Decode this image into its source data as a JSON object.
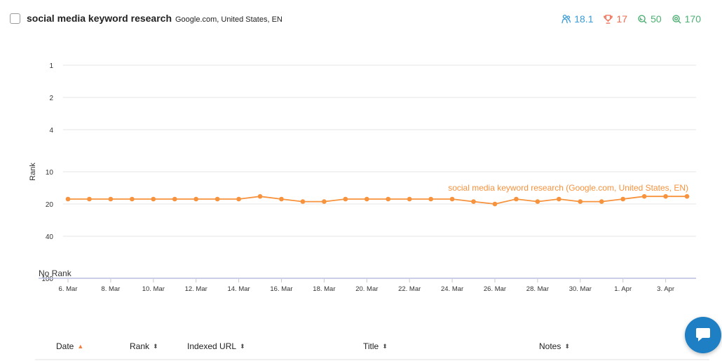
{
  "header": {
    "keyword": "social media keyword research",
    "location": "Google.com, United States, EN",
    "stats": [
      {
        "name": "average-rank",
        "icon": "people-icon",
        "value": "18.1",
        "color": "#3a9bd5"
      },
      {
        "name": "best-rank",
        "icon": "trophy-icon",
        "value": "17",
        "color": "#ef6b4f"
      },
      {
        "name": "keyword-difficulty",
        "icon": "search-icon",
        "value": "50",
        "color": "#4caf72"
      },
      {
        "name": "search-volume",
        "icon": "target-search-icon",
        "value": "170",
        "color": "#4caf72"
      }
    ]
  },
  "chart_data": {
    "type": "line",
    "ylabel": "Rank",
    "y_reversed": true,
    "y_scale": "log",
    "y_ticks": [
      "1",
      "2",
      "4",
      "10",
      "20",
      "40",
      "100"
    ],
    "no_rank_label": "No Rank",
    "x_tick_labels": [
      "6. Mar",
      "8. Mar",
      "10. Mar",
      "12. Mar",
      "14. Mar",
      "16. Mar",
      "18. Mar",
      "20. Mar",
      "22. Mar",
      "24. Mar",
      "26. Mar",
      "28. Mar",
      "30. Mar",
      "1. Apr",
      "3. Apr"
    ],
    "x": [
      "6. Mar",
      "7. Mar",
      "8. Mar",
      "9. Mar",
      "10. Mar",
      "11. Mar",
      "12. Mar",
      "13. Mar",
      "14. Mar",
      "15. Mar",
      "16. Mar",
      "17. Mar",
      "18. Mar",
      "19. Mar",
      "20. Mar",
      "21. Mar",
      "22. Mar",
      "23. Mar",
      "24. Mar",
      "25. Mar",
      "26. Mar",
      "27. Mar",
      "28. Mar",
      "29. Mar",
      "30. Mar",
      "31. Mar",
      "1. Apr",
      "2. Apr",
      "3. Apr",
      "4. Apr"
    ],
    "series": [
      {
        "name": "social media keyword research (Google.com, United States, EN)",
        "color": "#f7923d",
        "values": [
          18,
          18,
          18,
          18,
          18,
          18,
          18,
          18,
          18,
          17,
          18,
          19,
          19,
          18,
          18,
          18,
          18,
          18,
          18,
          19,
          20,
          18,
          19,
          18,
          19,
          19,
          18,
          17,
          17,
          17
        ]
      }
    ],
    "grid": true,
    "legend": "inline-label-right"
  },
  "table": {
    "columns": [
      {
        "label": "Date",
        "sort": "asc"
      },
      {
        "label": "Rank",
        "sort": "none"
      },
      {
        "label": "Indexed URL",
        "sort": "none"
      },
      {
        "label": "Title",
        "sort": "none"
      },
      {
        "label": "Notes",
        "sort": "none"
      }
    ]
  },
  "chat": {
    "icon": "chat-bubble-icon",
    "color": "#1e7fc4"
  }
}
